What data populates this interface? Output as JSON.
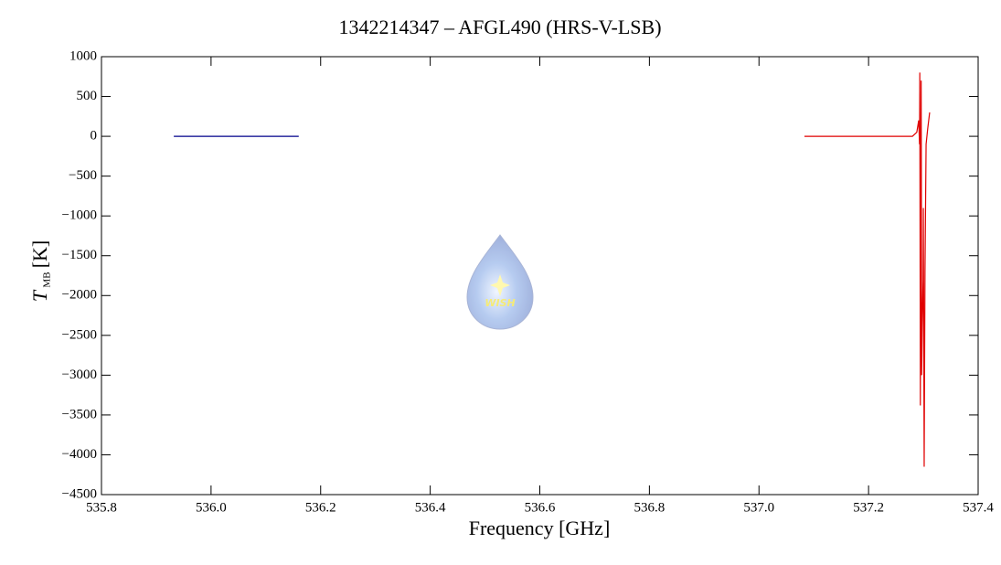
{
  "chart_data": {
    "type": "line",
    "title": "1342214347 – AFGL490 (HRS-V-LSB)",
    "x_label": "Frequency [GHz]",
    "y_label": {
      "symbol": "T",
      "subscript": "MB",
      "unit": "[K]"
    },
    "watermark": "WISH",
    "xlim": [
      535.8,
      537.4
    ],
    "xticks": [
      {
        "value": 535.8,
        "label": "535.8"
      },
      {
        "value": 536.0,
        "label": "536.0"
      },
      {
        "value": 536.2,
        "label": "536.2"
      },
      {
        "value": 536.4,
        "label": "536.4"
      },
      {
        "value": 536.6,
        "label": "536.6"
      },
      {
        "value": 536.8,
        "label": "536.8"
      },
      {
        "value": 537.0,
        "label": "537.0"
      },
      {
        "value": 537.2,
        "label": "537.2"
      },
      {
        "value": 537.4,
        "label": "537.4"
      }
    ],
    "ylim": [
      -4500,
      1000
    ],
    "yticks": [
      1000,
      500,
      0,
      {
        "value": -500,
        "label": "−500"
      },
      {
        "value": -1000,
        "label": "−1000"
      },
      {
        "value": -1500,
        "label": "−1500"
      },
      {
        "value": -2000,
        "label": "−2000"
      },
      {
        "value": -2500,
        "label": "−2500"
      },
      {
        "value": -3000,
        "label": "−3000"
      },
      {
        "value": -3500,
        "label": "−3500"
      },
      {
        "value": -4000,
        "label": "−4000"
      },
      {
        "value": -4500,
        "label": "−4500"
      }
    ],
    "series": [
      {
        "color": "#00008b",
        "x": [
          535.932,
          536.16
        ],
        "values": [
          0,
          0
        ]
      },
      {
        "color": "#e00000",
        "x": [
          537.083,
          537.28,
          537.288,
          537.2915,
          537.293,
          537.2935,
          537.2945,
          537.296,
          537.297,
          537.298,
          537.2995,
          537.3,
          537.3015,
          537.303,
          537.305,
          537.3065,
          537.308,
          537.3115
        ],
        "values": [
          0,
          0,
          50,
          200,
          -100,
          800,
          -3380,
          700,
          -3000,
          -2400,
          -1800,
          -900,
          -4150,
          -1700,
          -100,
          0,
          100,
          300
        ]
      }
    ]
  }
}
